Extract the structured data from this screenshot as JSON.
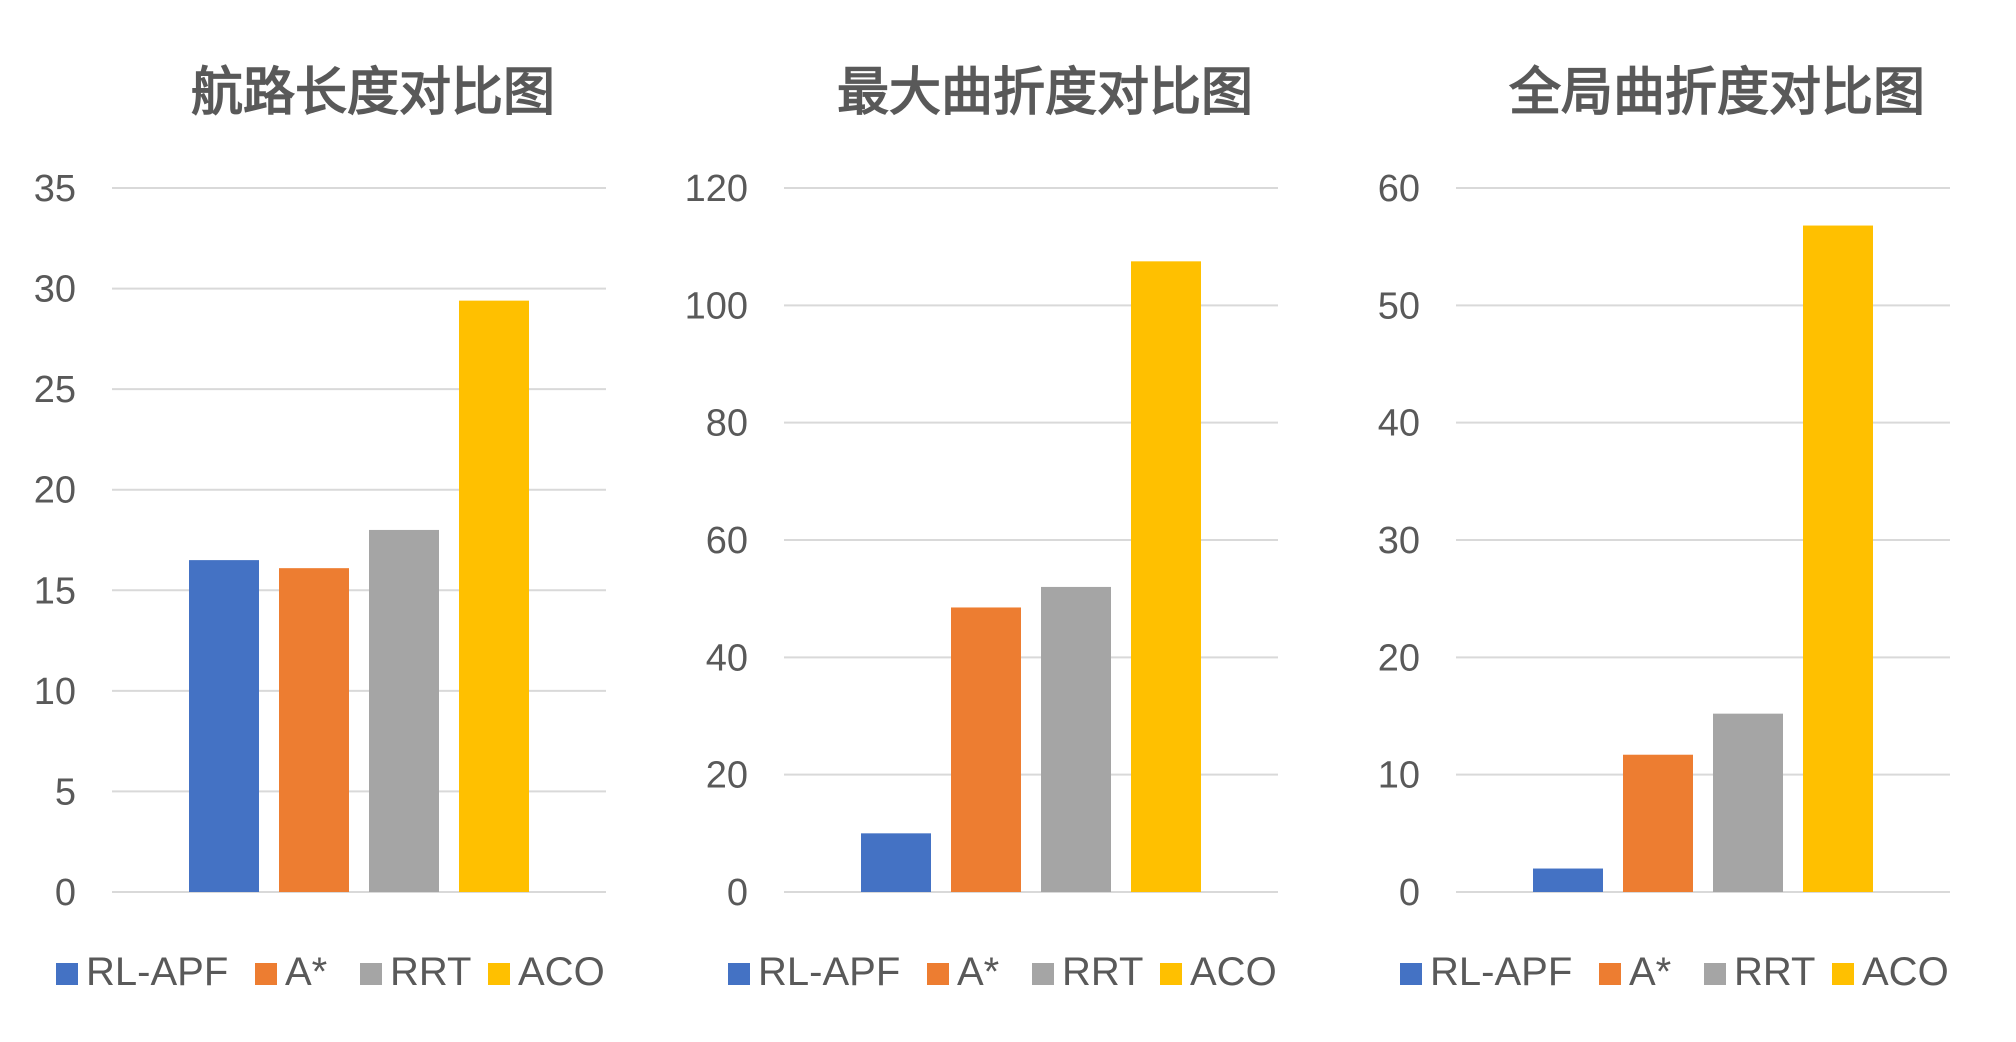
{
  "chart_data": [
    {
      "type": "bar",
      "title": "航路长度对比图",
      "categories": [
        ""
      ],
      "series": [
        {
          "name": "RL-APF",
          "values": [
            16.5
          ],
          "color": "#4472C4"
        },
        {
          "name": "A*",
          "values": [
            16.1
          ],
          "color": "#ED7D31"
        },
        {
          "name": "RRT",
          "values": [
            18.0
          ],
          "color": "#A5A5A5"
        },
        {
          "name": "ACO",
          "values": [
            29.4
          ],
          "color": "#FFC000"
        }
      ],
      "ylim": [
        0,
        35
      ],
      "yticks": [
        0,
        5,
        10,
        15,
        20,
        25,
        30,
        35
      ],
      "grid": true,
      "legend": "bottom"
    },
    {
      "type": "bar",
      "title": "最大曲折度对比图",
      "categories": [
        ""
      ],
      "series": [
        {
          "name": "RL-APF",
          "values": [
            10
          ],
          "color": "#4472C4"
        },
        {
          "name": "A*",
          "values": [
            48.5
          ],
          "color": "#ED7D31"
        },
        {
          "name": "RRT",
          "values": [
            52
          ],
          "color": "#A5A5A5"
        },
        {
          "name": "ACO",
          "values": [
            107.5
          ],
          "color": "#FFC000"
        }
      ],
      "ylim": [
        0,
        120
      ],
      "yticks": [
        0,
        20,
        40,
        60,
        80,
        100,
        120
      ],
      "grid": true,
      "legend": "bottom"
    },
    {
      "type": "bar",
      "title": "全局曲折度对比图",
      "categories": [
        ""
      ],
      "series": [
        {
          "name": "RL-APF",
          "values": [
            2
          ],
          "color": "#4472C4"
        },
        {
          "name": "A*",
          "values": [
            11.7
          ],
          "color": "#ED7D31"
        },
        {
          "name": "RRT",
          "values": [
            15.2
          ],
          "color": "#A5A5A5"
        },
        {
          "name": "ACO",
          "values": [
            56.8
          ],
          "color": "#FFC000"
        }
      ],
      "ylim": [
        0,
        60
      ],
      "yticks": [
        0,
        10,
        20,
        30,
        40,
        50,
        60
      ],
      "grid": true,
      "legend": "bottom"
    }
  ]
}
